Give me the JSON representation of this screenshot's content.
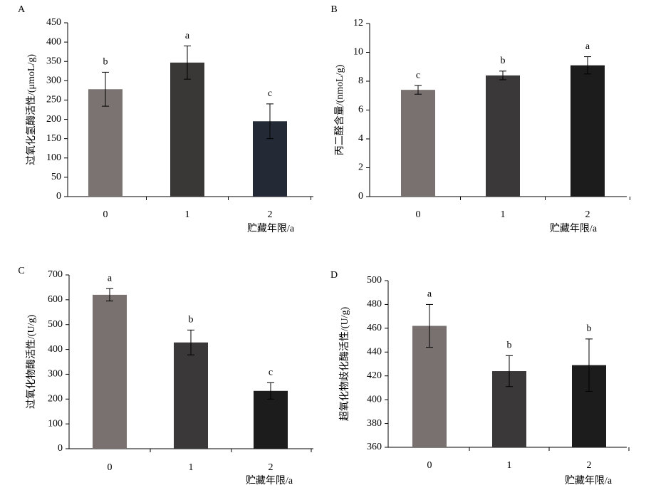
{
  "chart_data": [
    {
      "type": "bar",
      "panel": "A",
      "ylabel": "过氧化氢酶活性/(μmoL/g)",
      "xlabel": "贮藏年限/a",
      "categories": [
        "0",
        "1",
        "2"
      ],
      "values": [
        278,
        347,
        195
      ],
      "errors": [
        44,
        43,
        45
      ],
      "significance": [
        "b",
        "a",
        "c"
      ],
      "colors": [
        "#7a7372",
        "#3a3836",
        "#232a35"
      ],
      "ylim": [
        0,
        450
      ],
      "yticks": [
        0,
        50,
        100,
        150,
        200,
        250,
        300,
        350,
        400,
        450
      ]
    },
    {
      "type": "bar",
      "panel": "B",
      "ylabel": "丙二醛含量/(nmoL/g)",
      "xlabel": "贮藏年限/a",
      "categories": [
        "0",
        "1",
        "2"
      ],
      "values": [
        7.4,
        8.4,
        9.1
      ],
      "errors": [
        0.3,
        0.3,
        0.6
      ],
      "significance": [
        "c",
        "b",
        "a"
      ],
      "colors": [
        "#787170",
        "#3a3838",
        "#1c1c1c"
      ],
      "ylim": [
        0,
        12
      ],
      "yticks": [
        0,
        2,
        4,
        6,
        8,
        10,
        12
      ]
    },
    {
      "type": "bar",
      "panel": "C",
      "ylabel": "过氧化物酶活性/(U/g)",
      "xlabel": "贮藏年限/a",
      "categories": [
        "0",
        "1",
        "2"
      ],
      "values": [
        620,
        428,
        233
      ],
      "errors": [
        25,
        50,
        33
      ],
      "significance": [
        "a",
        "b",
        "c"
      ],
      "colors": [
        "#787170",
        "#3a3838",
        "#1c1c1c"
      ],
      "ylim": [
        0,
        700
      ],
      "yticks": [
        0,
        100,
        200,
        300,
        400,
        500,
        600,
        700
      ]
    },
    {
      "type": "bar",
      "panel": "D",
      "ylabel": "超氧化物歧化酶活性/(U/g)",
      "xlabel": "贮藏年限/a",
      "categories": [
        "0",
        "1",
        "2"
      ],
      "values": [
        462,
        424,
        429
      ],
      "errors": [
        18,
        13,
        22
      ],
      "significance": [
        "a",
        "b",
        "b"
      ],
      "colors": [
        "#787170",
        "#3a3838",
        "#1c1c1c"
      ],
      "ylim": [
        360,
        500
      ],
      "yticks": [
        360,
        380,
        400,
        420,
        440,
        460,
        480,
        500
      ]
    }
  ]
}
